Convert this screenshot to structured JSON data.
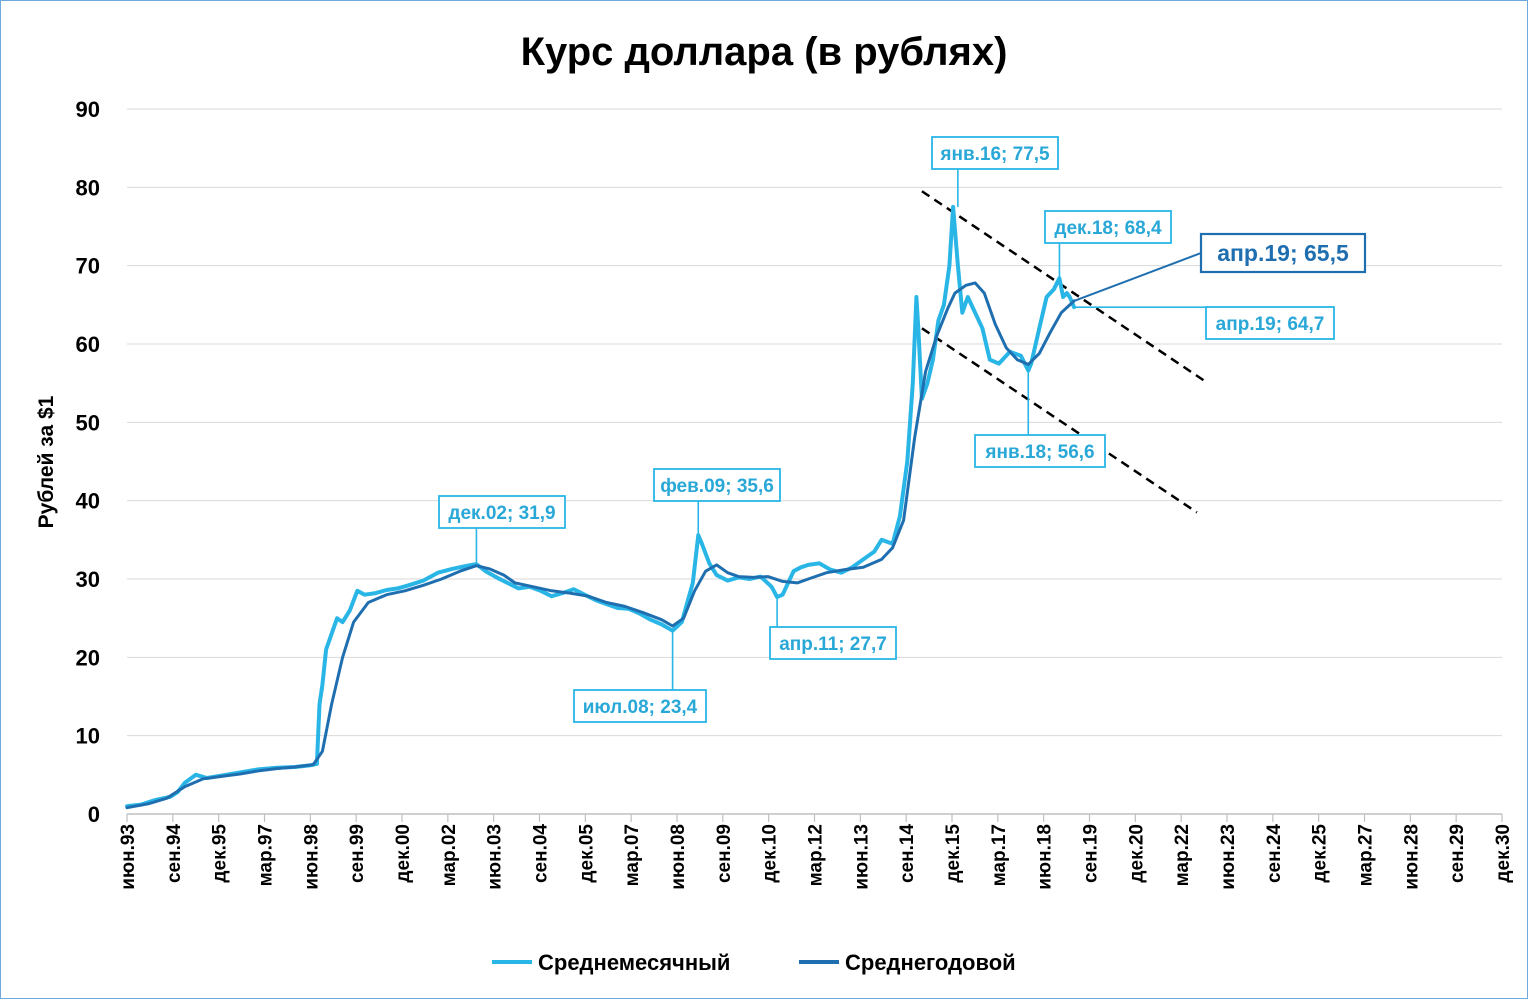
{
  "chart_data": {
    "type": "line",
    "title": "Курс доллара (в рублях)",
    "ylabel": "Рублей за $1",
    "xlabel": "",
    "ylim": [
      0,
      90
    ],
    "yticks": [
      0,
      10,
      20,
      30,
      40,
      50,
      60,
      70,
      80,
      90
    ],
    "xlim": [
      1993.42,
      2030.92
    ],
    "x_tick_labels": [
      "июн.93",
      "сен.94",
      "дек.95",
      "мар.97",
      "июн.98",
      "сен.99",
      "дек.00",
      "мар.02",
      "июн.03",
      "сен.04",
      "дек.05",
      "мар.07",
      "июн.08",
      "сен.09",
      "дек.10",
      "мар.12",
      "июн.13",
      "сен.14",
      "дек.15",
      "мар.17",
      "июн.18",
      "сен.19",
      "дек.20",
      "мар.22",
      "июн.23",
      "сен.24",
      "дек.25",
      "мар.27",
      "июн.28",
      "сен.29",
      "дек.30"
    ],
    "grid": true,
    "legend_position": "bottom",
    "series": [
      {
        "name": "Среднемесячный",
        "color": "#29b6e6",
        "x": [
          1993.42,
          1993.8,
          1994.2,
          1994.6,
          1994.8,
          1995.0,
          1995.3,
          1995.6,
          1996.0,
          1996.5,
          1997.0,
          1997.5,
          1998.0,
          1998.4,
          1998.6,
          1998.67,
          1998.75,
          1998.85,
          1999.0,
          1999.15,
          1999.3,
          1999.5,
          1999.7,
          1999.9,
          2000.2,
          2000.5,
          2000.8,
          2001.1,
          2001.5,
          2001.9,
          2002.3,
          2002.7,
          2002.95,
          2003.2,
          2003.5,
          2003.8,
          2004.1,
          2004.4,
          2004.7,
          2005.0,
          2005.3,
          2005.6,
          2005.9,
          2006.2,
          2006.5,
          2006.8,
          2007.1,
          2007.4,
          2007.7,
          2008.0,
          2008.3,
          2008.55,
          2008.7,
          2008.85,
          2009.0,
          2009.1,
          2009.3,
          2009.5,
          2009.8,
          2010.1,
          2010.4,
          2010.7,
          2011.0,
          2011.15,
          2011.3,
          2011.6,
          2011.8,
          2012.0,
          2012.3,
          2012.6,
          2012.9,
          2013.2,
          2013.5,
          2013.8,
          2014.0,
          2014.3,
          2014.5,
          2014.7,
          2014.85,
          2014.95,
          2015.0,
          2015.1,
          2015.25,
          2015.4,
          2015.55,
          2015.7,
          2015.85,
          2015.95,
          2016.08,
          2016.2,
          2016.35,
          2016.55,
          2016.75,
          2016.95,
          2017.2,
          2017.5,
          2017.8,
          2018.0,
          2018.08,
          2018.3,
          2018.5,
          2018.7,
          2018.85,
          2018.95,
          2019.05,
          2019.13,
          2019.25
        ],
        "values": [
          1.0,
          1.2,
          1.8,
          2.2,
          2.8,
          4.0,
          5.0,
          4.6,
          4.9,
          5.3,
          5.7,
          5.9,
          6.0,
          6.2,
          6.4,
          14.0,
          16.5,
          21.0,
          23.0,
          25.0,
          24.5,
          26.0,
          28.5,
          28.0,
          28.2,
          28.6,
          28.8,
          29.2,
          29.8,
          30.8,
          31.3,
          31.7,
          31.9,
          31.0,
          30.2,
          29.5,
          28.8,
          29.0,
          28.5,
          27.8,
          28.2,
          28.7,
          28.0,
          27.3,
          26.8,
          26.3,
          26.2,
          25.6,
          24.8,
          24.2,
          23.4,
          24.5,
          27.0,
          29.5,
          35.6,
          34.5,
          32.0,
          30.5,
          29.8,
          30.2,
          30.0,
          30.3,
          29.0,
          27.7,
          28.0,
          31.0,
          31.5,
          31.8,
          32.0,
          31.2,
          30.8,
          31.5,
          32.5,
          33.5,
          35.0,
          34.5,
          38.0,
          45.0,
          55.0,
          66.0,
          62.0,
          53.0,
          55.0,
          58.0,
          63.0,
          65.0,
          70.0,
          77.5,
          70.0,
          64.0,
          66.0,
          64.0,
          62.0,
          58.0,
          57.5,
          59.0,
          58.5,
          56.6,
          57.5,
          62.0,
          66.0,
          67.0,
          68.4,
          66.0,
          66.5,
          66.0,
          64.7
        ]
      },
      {
        "name": "Среднегодовой",
        "color": "#1f6fb0",
        "x": [
          1993.42,
          1994.0,
          1994.5,
          1995.0,
          1995.5,
          1996.0,
          1996.5,
          1997.0,
          1997.5,
          1998.0,
          1998.5,
          1998.75,
          1999.0,
          1999.3,
          1999.6,
          2000.0,
          2000.5,
          2001.0,
          2001.5,
          2002.0,
          2002.5,
          2002.95,
          2003.3,
          2003.7,
          2004.0,
          2004.5,
          2005.0,
          2005.5,
          2006.0,
          2006.5,
          2007.0,
          2007.5,
          2008.0,
          2008.3,
          2008.6,
          2008.9,
          2009.2,
          2009.5,
          2009.8,
          2010.1,
          2010.5,
          2010.9,
          2011.3,
          2011.7,
          2012.0,
          2012.5,
          2013.0,
          2013.5,
          2014.0,
          2014.3,
          2014.6,
          2014.9,
          2015.2,
          2015.5,
          2015.8,
          2016.0,
          2016.3,
          2016.55,
          2016.8,
          2017.1,
          2017.4,
          2017.7,
          2018.0,
          2018.3,
          2018.6,
          2018.9,
          2019.25
        ],
        "values": [
          0.8,
          1.3,
          2.0,
          3.5,
          4.5,
          4.8,
          5.1,
          5.5,
          5.8,
          6.0,
          6.3,
          8.0,
          14.0,
          20.0,
          24.5,
          27.0,
          28.0,
          28.5,
          29.2,
          30.0,
          31.0,
          31.7,
          31.3,
          30.5,
          29.5,
          29.0,
          28.5,
          28.2,
          27.8,
          27.0,
          26.5,
          25.7,
          24.8,
          24.0,
          25.0,
          28.5,
          31.0,
          31.8,
          30.8,
          30.3,
          30.2,
          30.3,
          29.7,
          29.5,
          30.0,
          30.8,
          31.2,
          31.5,
          32.5,
          34.0,
          37.5,
          48.0,
          56.5,
          61.0,
          64.5,
          66.5,
          67.5,
          67.8,
          66.5,
          62.5,
          59.5,
          58.0,
          57.4,
          58.8,
          61.5,
          64.0,
          65.5
        ]
      }
    ],
    "trend_lines": [
      {
        "from": [
          2015.1,
          79.5
        ],
        "to": [
          2022.9,
          55.0
        ]
      },
      {
        "from": [
          2015.1,
          62.0
        ],
        "to": [
          2022.6,
          38.5
        ]
      }
    ],
    "annotations": [
      {
        "text": "янв.16; 77,5",
        "point": [
          2016.08,
          77.5
        ],
        "style": "normal"
      },
      {
        "text": "дек.18; 68,4",
        "point": [
          2018.85,
          68.4
        ],
        "style": "normal"
      },
      {
        "text": "апр.19; 65,5",
        "point": [
          2019.25,
          65.5
        ],
        "style": "bold"
      },
      {
        "text": "апр.19; 64,7",
        "point": [
          2019.25,
          64.7
        ],
        "style": "normal"
      },
      {
        "text": "янв.18; 56,6",
        "point": [
          2018.0,
          56.6
        ],
        "style": "normal"
      },
      {
        "text": "дек.02; 31,9",
        "point": [
          2002.95,
          31.9
        ],
        "style": "normal"
      },
      {
        "text": "фев.09; 35,6",
        "point": [
          2009.0,
          35.6
        ],
        "style": "normal"
      },
      {
        "text": "апр.11; 27,7",
        "point": [
          2011.15,
          27.7
        ],
        "style": "normal"
      },
      {
        "text": "июл.08; 23,4",
        "point": [
          2008.3,
          23.4
        ],
        "style": "normal"
      }
    ]
  }
}
